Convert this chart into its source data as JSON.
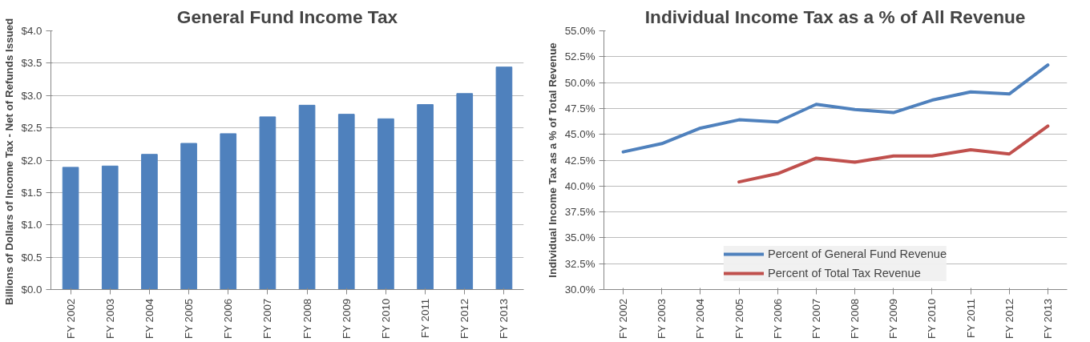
{
  "chart_data": [
    {
      "type": "bar",
      "title": "General Fund Income Tax",
      "ylabel": "Billions of Dollars of Income Tax  - Net of Refunds Issued",
      "categories": [
        "FY 2002",
        "FY 2003",
        "FY 2004",
        "FY 2005",
        "FY 2006",
        "FY 2007",
        "FY 2008",
        "FY 2009",
        "FY 2010",
        "FY 2011",
        "FY 2012",
        "FY 2013"
      ],
      "values": [
        1.89,
        1.91,
        2.09,
        2.26,
        2.41,
        2.67,
        2.85,
        2.71,
        2.64,
        2.86,
        3.03,
        3.44
      ],
      "color": "#4f81bd",
      "ylim": [
        0,
        4
      ],
      "yticks": [
        {
          "value": 0,
          "label": "$0.0"
        },
        {
          "value": 0.5,
          "label": "$0.5"
        },
        {
          "value": 1,
          "label": "$1.0"
        },
        {
          "value": 1.5,
          "label": "$1.5"
        },
        {
          "value": 2,
          "label": "$2.0"
        },
        {
          "value": 2.5,
          "label": "$2.5"
        },
        {
          "value": 3,
          "label": "$3.0"
        },
        {
          "value": 3.5,
          "label": "$3.5"
        },
        {
          "value": 4,
          "label": "$4.0"
        }
      ],
      "grid": "y",
      "legend": false
    },
    {
      "type": "line",
      "title": "Individual Income Tax as a % of All Revenue",
      "ylabel": "Individual Income Tax as a % of Total Revenue",
      "categories": [
        "FY 2002",
        "FY 2003",
        "FY 2004",
        "FY 2005",
        "FY 2006",
        "FY 2007",
        "FY 2008",
        "FY 2009",
        "FY 2010",
        "FY 2011",
        "FY 2012",
        "FY 2013"
      ],
      "series": [
        {
          "name": "Percent of General Fund Revenue",
          "color": "#4f81bd",
          "values": [
            43.3,
            44.1,
            45.6,
            46.4,
            46.2,
            47.9,
            47.4,
            47.1,
            48.3,
            49.1,
            48.9,
            51.7
          ]
        },
        {
          "name": "Percent of Total Tax Revenue",
          "color": "#c0504d",
          "values": [
            null,
            null,
            null,
            40.4,
            41.2,
            42.7,
            42.3,
            42.9,
            42.9,
            43.5,
            43.1,
            45.8
          ]
        }
      ],
      "ylim": [
        30,
        55
      ],
      "yticks": [
        {
          "value": 30,
          "label": "30.0%"
        },
        {
          "value": 32.5,
          "label": "32.5%"
        },
        {
          "value": 35,
          "label": "35.0%"
        },
        {
          "value": 37.5,
          "label": "37.5%"
        },
        {
          "value": 40,
          "label": "40.0%"
        },
        {
          "value": 42.5,
          "label": "42.5%"
        },
        {
          "value": 45,
          "label": "45.0%"
        },
        {
          "value": 47.5,
          "label": "47.5%"
        },
        {
          "value": 50,
          "label": "50.0%"
        },
        {
          "value": 52.5,
          "label": "52.5%"
        },
        {
          "value": 55,
          "label": "55.0%"
        }
      ],
      "grid": "y",
      "legend": "bottom",
      "line_style": "solid",
      "marker": "none"
    }
  ]
}
